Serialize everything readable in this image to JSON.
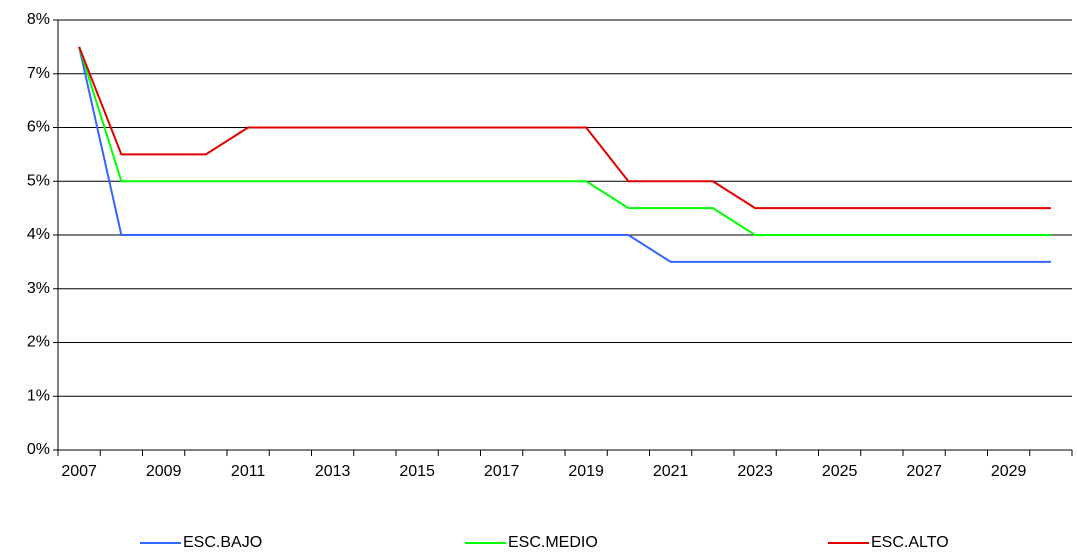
{
  "chart_data": {
    "type": "line",
    "categories": [
      "2007",
      null,
      "2009",
      null,
      "2011",
      null,
      "2013",
      null,
      "2015",
      null,
      "2017",
      null,
      "2019",
      null,
      "2021",
      null,
      "2023",
      null,
      "2025",
      null,
      "2027",
      null,
      "2029",
      null
    ],
    "series": [
      {
        "name": "ESC.BAJO",
        "color": "#3366ff",
        "values": [
          7.5,
          4,
          4,
          4,
          4,
          4,
          4,
          4,
          4,
          4,
          4,
          4,
          4,
          4,
          3.5,
          3.5,
          3.5,
          3.5,
          3.5,
          3.5,
          3.5,
          3.5,
          3.5,
          3.5
        ]
      },
      {
        "name": "ESC.MEDIO",
        "color": "#00ff00",
        "values": [
          7.5,
          5,
          5,
          5,
          5,
          5,
          5,
          5,
          5,
          5,
          5,
          5,
          5,
          4.5,
          4.5,
          4.5,
          4,
          4,
          4,
          4,
          4,
          4,
          4,
          4
        ]
      },
      {
        "name": "ESC.ALTO",
        "color": "#e00000",
        "values": [
          7.5,
          5.5,
          5.5,
          5.5,
          6,
          6,
          6,
          6,
          6,
          6,
          6,
          6,
          6,
          5,
          5,
          5,
          4.5,
          4.5,
          4.5,
          4.5,
          4.5,
          4.5,
          4.5,
          4.5
        ]
      }
    ],
    "ylim": [
      0,
      8
    ],
    "yticks": [
      {
        "value": 0,
        "label": "0%"
      },
      {
        "value": 1,
        "label": "1%"
      },
      {
        "value": 2,
        "label": "2%"
      },
      {
        "value": 3,
        "label": "3%"
      },
      {
        "value": 4,
        "label": "4%"
      },
      {
        "value": 5,
        "label": "5%"
      },
      {
        "value": 6,
        "label": "6%"
      },
      {
        "value": 7,
        "label": "7%"
      },
      {
        "value": 8,
        "label": "8%"
      }
    ],
    "grid": true,
    "legend": "bottom"
  }
}
